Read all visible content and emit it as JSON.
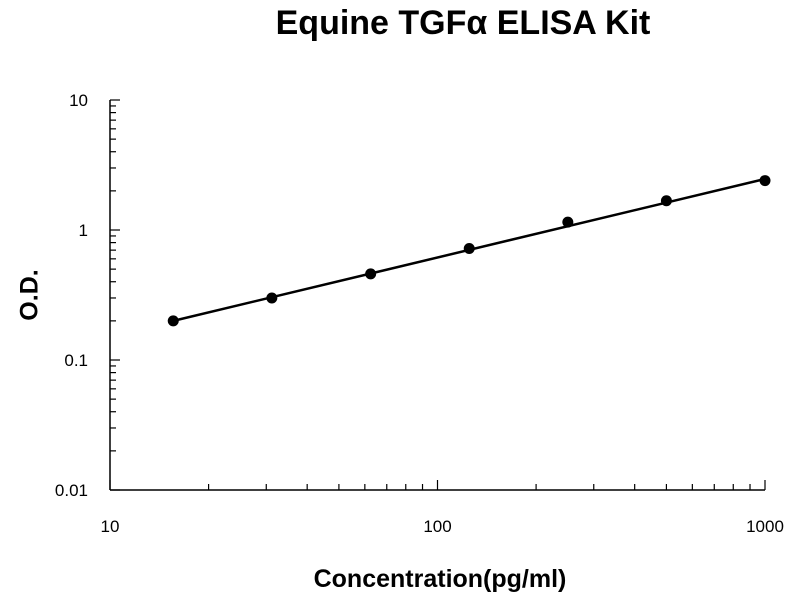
{
  "chart_data": {
    "type": "scatter",
    "title": "Equine TGFα ELISA Kit",
    "xlabel": "Concentration(pg/ml)",
    "ylabel": "O.D.",
    "x_scale": "log",
    "y_scale": "log",
    "xlim": [
      10,
      1000
    ],
    "ylim": [
      0.01,
      10
    ],
    "x_ticks": [
      "10",
      "100",
      "1000"
    ],
    "y_ticks": [
      "0.01",
      "0.1",
      "1",
      "10"
    ],
    "grid": false,
    "legend": "none",
    "series": [
      {
        "x": [
          15.6,
          31.2,
          62.5,
          125,
          250,
          500,
          1000
        ],
        "y": [
          0.2,
          0.3,
          0.46,
          0.72,
          1.15,
          1.68,
          2.4
        ]
      }
    ],
    "trendline": {
      "type": "power",
      "x": [
        15.6,
        1000
      ],
      "y": [
        0.2,
        2.47
      ]
    },
    "colors": {
      "marker": "#000000",
      "line": "#000000",
      "axis": "#000000"
    }
  }
}
